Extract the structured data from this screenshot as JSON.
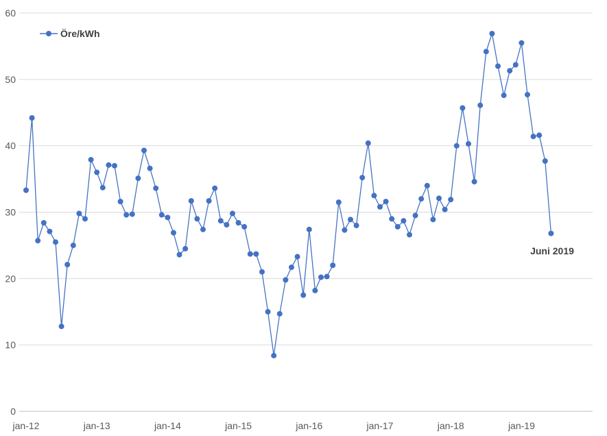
{
  "chart_data": {
    "type": "line",
    "title": "",
    "xlabel": "",
    "ylabel": "",
    "ylim": [
      0,
      60
    ],
    "yticks": [
      0,
      10,
      20,
      30,
      40,
      50,
      60
    ],
    "x_tick_labels": [
      "jan-12",
      "jan-13",
      "jan-14",
      "jan-15",
      "jan-16",
      "jan-17",
      "jan-18",
      "jan-19"
    ],
    "grid": "horizontal",
    "legend_position": "top-left",
    "series_color": "#4472c4",
    "series": [
      {
        "name": "Öre/kWh",
        "x": [
          "2012-01",
          "2012-02",
          "2012-03",
          "2012-04",
          "2012-05",
          "2012-06",
          "2012-07",
          "2012-08",
          "2012-09",
          "2012-10",
          "2012-11",
          "2012-12",
          "2013-01",
          "2013-02",
          "2013-03",
          "2013-04",
          "2013-05",
          "2013-06",
          "2013-07",
          "2013-08",
          "2013-09",
          "2013-10",
          "2013-11",
          "2013-12",
          "2014-01",
          "2014-02",
          "2014-03",
          "2014-04",
          "2014-05",
          "2014-06",
          "2014-07",
          "2014-08",
          "2014-09",
          "2014-10",
          "2014-11",
          "2014-12",
          "2015-01",
          "2015-02",
          "2015-03",
          "2015-04",
          "2015-05",
          "2015-06",
          "2015-07",
          "2015-08",
          "2015-09",
          "2015-10",
          "2015-11",
          "2015-12",
          "2016-01",
          "2016-02",
          "2016-03",
          "2016-04",
          "2016-05",
          "2016-06",
          "2016-07",
          "2016-08",
          "2016-09",
          "2016-10",
          "2016-11",
          "2016-12",
          "2017-01",
          "2017-02",
          "2017-03",
          "2017-04",
          "2017-05",
          "2017-06",
          "2017-07",
          "2017-08",
          "2017-09",
          "2017-10",
          "2017-11",
          "2017-12",
          "2018-01",
          "2018-02",
          "2018-03",
          "2018-04",
          "2018-05",
          "2018-06",
          "2018-07",
          "2018-08",
          "2018-09",
          "2018-10",
          "2018-11",
          "2018-12",
          "2019-01",
          "2019-02",
          "2019-03",
          "2019-04",
          "2019-05",
          "2019-06"
        ],
        "values": [
          33.3,
          44.2,
          25.7,
          28.4,
          27.1,
          25.5,
          12.8,
          22.1,
          25.0,
          29.8,
          29.0,
          37.9,
          36.0,
          33.7,
          37.1,
          37.0,
          31.6,
          29.6,
          29.7,
          35.1,
          39.3,
          36.6,
          33.6,
          29.6,
          29.2,
          26.9,
          23.6,
          24.5,
          31.7,
          29.0,
          27.4,
          31.7,
          33.6,
          28.7,
          28.1,
          29.8,
          28.4,
          27.8,
          23.7,
          23.7,
          21.0,
          15.0,
          8.4,
          14.7,
          19.8,
          21.7,
          23.3,
          17.5,
          27.4,
          18.2,
          20.2,
          20.3,
          22.0,
          31.5,
          27.3,
          28.9,
          28.0,
          35.2,
          40.4,
          32.5,
          30.8,
          31.6,
          29.0,
          27.8,
          28.7,
          26.6,
          29.5,
          32.0,
          34.0,
          28.9,
          32.1,
          30.4,
          31.9,
          40.0,
          45.7,
          40.3,
          34.6,
          46.1,
          54.2,
          56.9,
          52.0,
          47.6,
          51.3,
          52.2,
          55.5,
          47.7,
          41.4,
          41.6,
          37.7,
          26.8
        ]
      }
    ],
    "annotations": [
      {
        "text": "Juni 2019",
        "x": "2019-06",
        "y": 26.8
      }
    ]
  }
}
